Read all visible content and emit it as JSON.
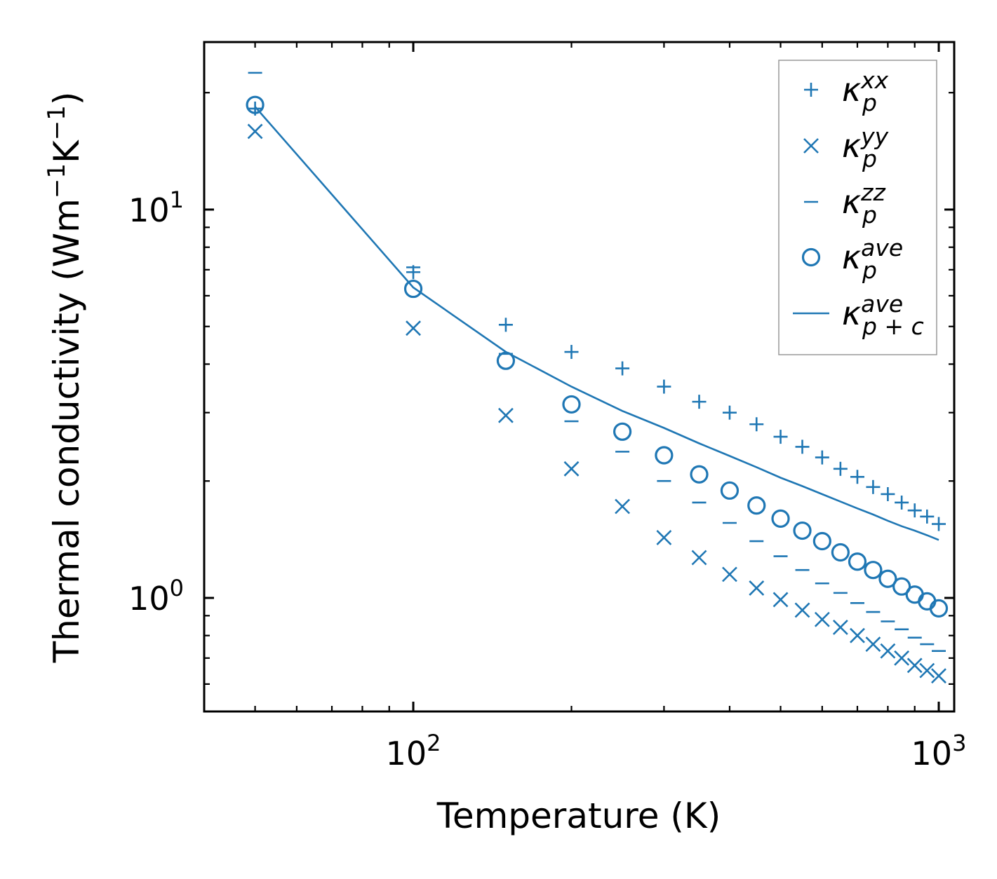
{
  "chart_data": {
    "type": "scatter",
    "xscale": "log",
    "yscale": "log",
    "xlim": [
      40,
      1070
    ],
    "ylim": [
      0.51,
      27
    ],
    "xlabel": "Temperature (K)",
    "ylabel": {
      "base": "Thermal conductivity (Wm",
      "sup1": "−1",
      "mid": "K",
      "sup2": "−1",
      "end": ")"
    },
    "x_ticks": [
      {
        "value": 100,
        "base": "10",
        "exp": "2"
      },
      {
        "value": 1000,
        "base": "10",
        "exp": "3"
      }
    ],
    "y_ticks": [
      {
        "value": 1,
        "base": "10",
        "exp": "0"
      },
      {
        "value": 10,
        "base": "10",
        "exp": "1"
      }
    ],
    "x": [
      50,
      100,
      150,
      200,
      250,
      300,
      350,
      400,
      450,
      500,
      550,
      600,
      650,
      700,
      750,
      800,
      850,
      900,
      950,
      1000
    ],
    "series": [
      {
        "name": "kappa_p_xx",
        "legend": {
          "base": "κ",
          "sub": "p",
          "sup": "xx"
        },
        "marker": "plus",
        "values": [
          18.2,
          6.9,
          5.05,
          4.3,
          3.9,
          3.5,
          3.2,
          3.0,
          2.8,
          2.6,
          2.45,
          2.3,
          2.15,
          2.05,
          1.93,
          1.85,
          1.76,
          1.68,
          1.62,
          1.55
        ]
      },
      {
        "name": "kappa_p_yy",
        "legend": {
          "base": "κ",
          "sub": "p",
          "sup": "yy"
        },
        "marker": "x",
        "values": [
          15.9,
          4.95,
          2.95,
          2.15,
          1.72,
          1.43,
          1.27,
          1.15,
          1.06,
          0.99,
          0.93,
          0.88,
          0.84,
          0.8,
          0.76,
          0.73,
          0.7,
          0.67,
          0.65,
          0.63
        ]
      },
      {
        "name": "kappa_p_zz",
        "legend": {
          "base": "κ",
          "sub": "p",
          "sup": "zz"
        },
        "marker": "dash",
        "values": [
          22.5,
          7.1,
          4.25,
          2.85,
          2.38,
          2.0,
          1.76,
          1.56,
          1.4,
          1.28,
          1.18,
          1.09,
          1.03,
          0.97,
          0.92,
          0.87,
          0.83,
          0.79,
          0.76,
          0.73
        ]
      },
      {
        "name": "kappa_p_ave",
        "legend": {
          "base": "κ",
          "sub": "p",
          "sup": "ave"
        },
        "marker": "circle",
        "values": [
          18.6,
          6.25,
          4.08,
          3.15,
          2.68,
          2.33,
          2.08,
          1.89,
          1.73,
          1.6,
          1.49,
          1.4,
          1.31,
          1.24,
          1.18,
          1.12,
          1.07,
          1.02,
          0.98,
          0.94
        ]
      },
      {
        "name": "kappa_p+c_ave",
        "legend": {
          "base": "κ",
          "sub": "p + c",
          "sup": "ave"
        },
        "marker": "line",
        "values": [
          18.4,
          6.3,
          4.3,
          3.5,
          3.03,
          2.74,
          2.5,
          2.32,
          2.17,
          2.04,
          1.94,
          1.85,
          1.77,
          1.7,
          1.64,
          1.58,
          1.53,
          1.49,
          1.45,
          1.41
        ]
      }
    ],
    "legend_position": "top-right",
    "grid": false,
    "color": "#1f77b4"
  }
}
